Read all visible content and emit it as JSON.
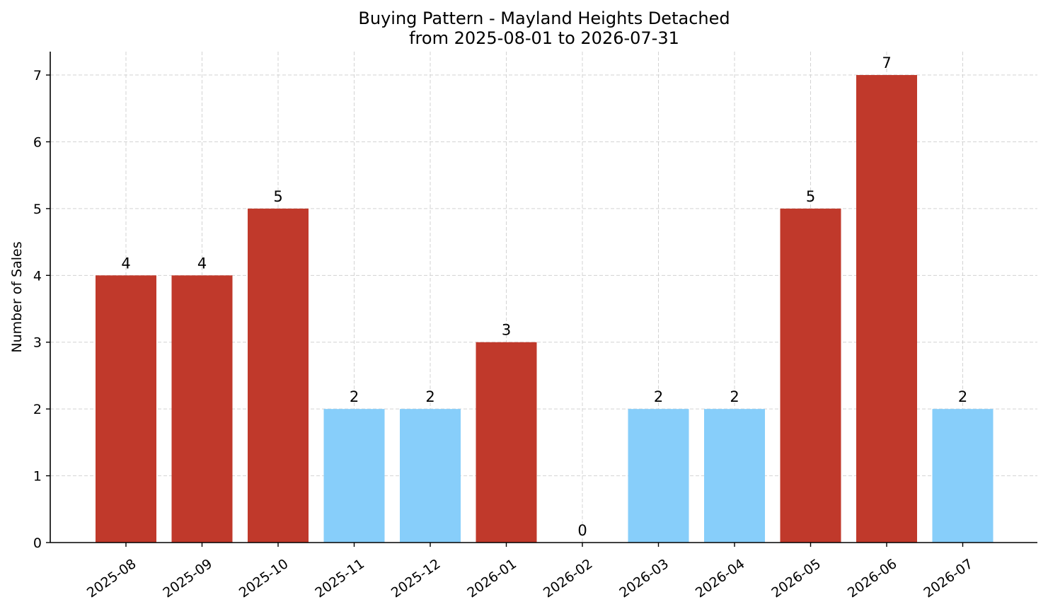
{
  "chart_data": {
    "type": "bar",
    "title_line1": "Buying Pattern - Mayland Heights Detached",
    "title_line2": "from 2025-08-01 to 2026-07-31",
    "xlabel": "",
    "ylabel": "Number of Sales",
    "ylim": [
      0,
      7.35
    ],
    "yticks": [
      "0",
      "1",
      "2",
      "3",
      "4",
      "5",
      "6",
      "7"
    ],
    "grid": true,
    "categories": [
      "2025-08",
      "2025-09",
      "2025-10",
      "2025-11",
      "2025-12",
      "2026-01",
      "2026-02",
      "2026-03",
      "2026-04",
      "2026-05",
      "2026-06",
      "2026-07"
    ],
    "values": [
      4,
      4,
      5,
      2,
      2,
      3,
      0,
      2,
      2,
      5,
      7,
      2
    ],
    "value_labels": [
      "4",
      "4",
      "5",
      "2",
      "2",
      "3",
      "0",
      "2",
      "2",
      "5",
      "7",
      "2"
    ],
    "bar_colors": [
      "#c0392b",
      "#c0392b",
      "#c0392b",
      "#87cefa",
      "#87cefa",
      "#c0392b",
      "#87cefa",
      "#87cefa",
      "#87cefa",
      "#c0392b",
      "#c0392b",
      "#87cefa"
    ]
  }
}
